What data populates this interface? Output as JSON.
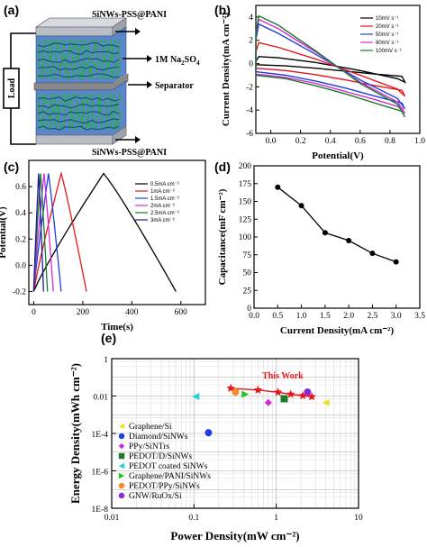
{
  "panels": {
    "a": {
      "label": "(a)",
      "top_electrode": "SiNWs-PSS@PANI",
      "electrolyte": "1M Na",
      "electrolyte_sub": "2",
      "electrolyte_tail": "SO",
      "electrolyte_sub2": "4",
      "separator": "Separator",
      "bottom_electrode": "SiNWs-PSS@PANI",
      "load": "Load",
      "colors": {
        "plate": "#b9bdc4",
        "nanowire": "#1cb83a",
        "blue": "#1f56b8",
        "separator": "#8a8a8a"
      }
    },
    "b": {
      "label": "(b)"
    },
    "c": {
      "label": "(c)"
    },
    "d": {
      "label": "(d)"
    },
    "e": {
      "label": "(e)"
    }
  },
  "chart_data": [
    {
      "id": "b",
      "type": "line",
      "xlabel": "Potential(V)",
      "ylabel": "Current Density(mA cm⁻²)",
      "xlim": [
        -0.1,
        1.0
      ],
      "ylim": [
        -6,
        5
      ],
      "xticks": [
        0.0,
        0.2,
        0.4,
        0.6,
        0.8,
        1.0
      ],
      "xtick_labels": [
        "0.0",
        "0.2",
        "0.4",
        "0.6",
        "0.8",
        "1.0"
      ],
      "yticks": [
        -6,
        -4,
        -2,
        0,
        2,
        4
      ],
      "ytick_labels": [
        "-6",
        "-4",
        "-2",
        "0",
        "2",
        "4"
      ],
      "legend_position": "top-right",
      "series": [
        {
          "name": "10mV s⁻¹",
          "color": "#000000",
          "loop": [
            [
              -0.1,
              -0.1
            ],
            [
              0.1,
              -0.2
            ],
            [
              0.3,
              -0.4
            ],
            [
              0.5,
              -0.65
            ],
            [
              0.7,
              -0.9
            ],
            [
              0.88,
              -1.1
            ],
            [
              0.9,
              -1.6
            ],
            [
              0.85,
              -1.3
            ],
            [
              0.6,
              -0.6
            ],
            [
              0.3,
              0.1
            ],
            [
              0.05,
              0.5
            ],
            [
              -0.08,
              0.6
            ],
            [
              -0.1,
              0.2
            ]
          ]
        },
        {
          "name": "20mV s⁻¹",
          "color": "#e8141b",
          "loop": [
            [
              -0.1,
              -0.4
            ],
            [
              0.1,
              -0.6
            ],
            [
              0.3,
              -0.95
            ],
            [
              0.5,
              -1.4
            ],
            [
              0.7,
              -1.9
            ],
            [
              0.88,
              -2.3
            ],
            [
              0.9,
              -2.8
            ],
            [
              0.85,
              -2.2
            ],
            [
              0.6,
              -1.0
            ],
            [
              0.3,
              0.4
            ],
            [
              0.05,
              1.4
            ],
            [
              -0.08,
              1.8
            ],
            [
              -0.1,
              1.0
            ]
          ]
        },
        {
          "name": "50mV s⁻¹",
          "color": "#1e3fe0",
          "loop": [
            [
              -0.1,
              -0.7
            ],
            [
              0.1,
              -1.0
            ],
            [
              0.3,
              -1.5
            ],
            [
              0.5,
              -2.1
            ],
            [
              0.7,
              -2.8
            ],
            [
              0.88,
              -3.4
            ],
            [
              0.9,
              -3.9
            ],
            [
              0.85,
              -3.0
            ],
            [
              0.6,
              -1.4
            ],
            [
              0.3,
              0.8
            ],
            [
              0.05,
              2.6
            ],
            [
              -0.08,
              3.4
            ],
            [
              -0.1,
              2.0
            ]
          ]
        },
        {
          "name": "80mV s⁻¹",
          "color": "#d12ad6",
          "loop": [
            [
              -0.1,
              -0.9
            ],
            [
              0.1,
              -1.2
            ],
            [
              0.3,
              -1.7
            ],
            [
              0.5,
              -2.4
            ],
            [
              0.7,
              -3.1
            ],
            [
              0.88,
              -3.8
            ],
            [
              0.9,
              -4.3
            ],
            [
              0.85,
              -3.3
            ],
            [
              0.6,
              -1.6
            ],
            [
              0.3,
              1.0
            ],
            [
              0.05,
              3.0
            ],
            [
              -0.08,
              3.8
            ],
            [
              -0.1,
              2.4
            ]
          ]
        },
        {
          "name": "100mV s⁻¹",
          "color": "#1b7a2c",
          "loop": [
            [
              -0.1,
              -1.0
            ],
            [
              0.1,
              -1.3
            ],
            [
              0.3,
              -1.9
            ],
            [
              0.5,
              -2.6
            ],
            [
              0.7,
              -3.4
            ],
            [
              0.88,
              -4.1
            ],
            [
              0.9,
              -4.6
            ],
            [
              0.85,
              -3.5
            ],
            [
              0.6,
              -1.7
            ],
            [
              0.3,
              1.1
            ],
            [
              0.05,
              3.3
            ],
            [
              -0.08,
              4.1
            ],
            [
              -0.1,
              2.6
            ]
          ]
        }
      ]
    },
    {
      "id": "c",
      "type": "line",
      "xlabel": "Time(s)",
      "ylabel": "Potential(V)",
      "xlim": [
        -20,
        700
      ],
      "ylim": [
        -0.3,
        0.8
      ],
      "xticks": [
        0,
        200,
        400,
        600
      ],
      "xtick_labels": [
        "0",
        "200",
        "400",
        "600"
      ],
      "yticks": [
        -0.2,
        0.0,
        0.2,
        0.4,
        0.6
      ],
      "ytick_labels": [
        "-0.2",
        "0.0",
        "0.2",
        "0.4",
        "0.6"
      ],
      "legend_position": "top-right",
      "series": [
        {
          "name": "0.5mA cm⁻²",
          "color": "#000000",
          "t_charge": 285,
          "t_end": 580,
          "v_peak": 0.7
        },
        {
          "name": "1mA cm⁻²",
          "color": "#e8141b",
          "t_charge": 112,
          "t_end": 215,
          "v_peak": 0.7
        },
        {
          "name": "1.5mA cm⁻²",
          "color": "#1e3fe0",
          "t_charge": 60,
          "t_end": 112,
          "v_peak": 0.7
        },
        {
          "name": "2mA cm⁻²",
          "color": "#d12ad6",
          "t_charge": 42,
          "t_end": 80,
          "v_peak": 0.7
        },
        {
          "name": "2.5mA cm⁻²",
          "color": "#1b7a2c",
          "t_charge": 28,
          "t_end": 56,
          "v_peak": 0.7
        },
        {
          "name": "3mA cm⁻²",
          "color": "#1a1a9a",
          "t_charge": 20,
          "t_end": 40,
          "v_peak": 0.7
        }
      ]
    },
    {
      "id": "d",
      "type": "line",
      "xlabel": "Current Density(mA cm⁻²)",
      "ylabel": "Capacitance(mF cm⁻²)",
      "xlim": [
        0.0,
        3.5
      ],
      "ylim": [
        0,
        200
      ],
      "xticks": [
        0.0,
        0.5,
        1.0,
        1.5,
        2.0,
        2.5,
        3.0,
        3.5
      ],
      "xtick_labels": [
        "0.0",
        "0.5",
        "1.0",
        "1.5",
        "2.0",
        "2.5",
        "3.0",
        "3.5"
      ],
      "yticks": [
        0,
        25,
        50,
        75,
        100,
        125,
        150,
        175,
        200
      ],
      "ytick_labels": [
        "0",
        "25",
        "50",
        "75",
        "100",
        "125",
        "150",
        "175",
        "200"
      ],
      "x": [
        0.5,
        1.0,
        1.5,
        2.0,
        2.5,
        3.0
      ],
      "y": [
        170,
        144,
        106,
        95,
        77,
        65
      ]
    },
    {
      "id": "e",
      "type": "scatter",
      "xlabel": "Power Density(mW cm⁻²)",
      "ylabel": "Energy Density(mWh cm⁻²)",
      "x_log": true,
      "y_log": true,
      "xlim": [
        0.01,
        10
      ],
      "ylim": [
        1e-08,
        1
      ],
      "xtick_labels": [
        "0.01",
        "0.1",
        "1",
        "10"
      ],
      "ytick_labels": [
        "1",
        "0.01",
        "1E-4",
        "1E-6",
        "1E-8"
      ],
      "annotation": "This Work",
      "this_work": {
        "color": "#e8141b",
        "x": [
          0.28,
          0.6,
          1.05,
          1.5,
          2.1,
          2.7
        ],
        "y": [
          0.026,
          0.021,
          0.016,
          0.0125,
          0.0105,
          0.0092
        ]
      },
      "comparisons": [
        {
          "name": "Graphene/Si",
          "marker": "triangle-left",
          "color": "#f0e020",
          "x": 4.0,
          "y": 0.0045
        },
        {
          "name": "Diamond/SiNWs",
          "marker": "circle",
          "color": "#1e3fe0",
          "x": 0.15,
          "y": 0.00011
        },
        {
          "name": "PPy/SiNTrs",
          "marker": "diamond",
          "color": "#d12ad6",
          "x": 0.8,
          "y": 0.0045
        },
        {
          "name": "PEDOT/D/SiNWs",
          "marker": "square",
          "color": "#1b7a2c",
          "x": 1.25,
          "y": 0.0072
        },
        {
          "name": "PEDOT coated SiNWs",
          "marker": "triangle-left",
          "color": "#22d3d3",
          "x": 0.105,
          "y": 0.0095
        },
        {
          "name": "Graphene/PANI/SiNWs",
          "marker": "triangle-right",
          "color": "#22c421",
          "x": 0.42,
          "y": 0.0125
        },
        {
          "name": "PEDOT/PPy/SiNWs",
          "marker": "circle",
          "color": "#f08a2a",
          "x": 0.32,
          "y": 0.0165
        },
        {
          "name": "GNW/RuOx/Si",
          "marker": "circle",
          "color": "#8a2ad6",
          "x": 2.4,
          "y": 0.0165
        }
      ],
      "legend_position": "bottom-left"
    }
  ]
}
